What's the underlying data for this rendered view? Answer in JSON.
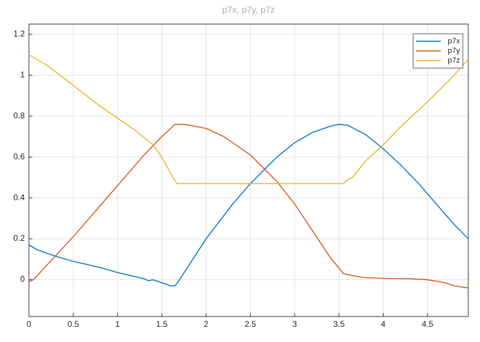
{
  "chart_data": {
    "type": "line",
    "title": "p7x, p7y, p7z",
    "xlim": [
      0,
      4.96
    ],
    "ylim": [
      -0.18,
      1.25
    ],
    "xticks": [
      0,
      0.5,
      1,
      1.5,
      2,
      2.5,
      3,
      3.5,
      4,
      4.5
    ],
    "yticks": [
      0,
      0.2,
      0.4,
      0.6,
      0.8,
      1,
      1.2
    ],
    "grid": true,
    "legend": "northeast",
    "series": [
      {
        "name": "p7x",
        "color": "#0072bd",
        "x": [
          0,
          0.1,
          0.3,
          0.5,
          0.8,
          1.0,
          1.3,
          1.35,
          1.4,
          1.5,
          1.6,
          1.65,
          1.7,
          2.0,
          2.3,
          2.5,
          2.8,
          3.0,
          3.2,
          3.4,
          3.5,
          3.6,
          3.8,
          4.0,
          4.2,
          4.4,
          4.6,
          4.8,
          4.96
        ],
        "values": [
          0.17,
          0.145,
          0.115,
          0.09,
          0.06,
          0.035,
          0.005,
          -0.005,
          0.0,
          -0.015,
          -0.03,
          -0.03,
          0.0,
          0.2,
          0.37,
          0.47,
          0.6,
          0.67,
          0.72,
          0.75,
          0.76,
          0.755,
          0.71,
          0.64,
          0.56,
          0.47,
          0.37,
          0.27,
          0.2
        ]
      },
      {
        "name": "p7y",
        "color": "#d95319",
        "x": [
          0,
          0.05,
          0.2,
          0.5,
          0.8,
          1.0,
          1.3,
          1.5,
          1.65,
          1.75,
          2.0,
          2.2,
          2.5,
          2.8,
          3.0,
          3.2,
          3.4,
          3.55,
          3.65,
          3.8,
          4.0,
          4.3,
          4.5,
          4.7,
          4.8,
          4.96
        ],
        "values": [
          -0.01,
          0.0,
          0.07,
          0.21,
          0.36,
          0.46,
          0.61,
          0.7,
          0.76,
          0.76,
          0.74,
          0.7,
          0.61,
          0.48,
          0.37,
          0.24,
          0.11,
          0.03,
          0.02,
          0.01,
          0.007,
          0.005,
          0.0,
          -0.015,
          -0.03,
          -0.04
        ]
      },
      {
        "name": "p7z",
        "color": "#edb120",
        "x": [
          0,
          0.2,
          0.5,
          0.8,
          1.0,
          1.2,
          1.4,
          1.5,
          1.6,
          1.67,
          2.0,
          3.0,
          3.55,
          3.6,
          3.65,
          3.8,
          4.0,
          4.2,
          4.5,
          4.8,
          4.96
        ],
        "values": [
          1.1,
          1.05,
          0.95,
          0.85,
          0.79,
          0.73,
          0.66,
          0.6,
          0.52,
          0.47,
          0.47,
          0.47,
          0.47,
          0.49,
          0.5,
          0.58,
          0.66,
          0.75,
          0.87,
          1.0,
          1.08
        ]
      }
    ]
  }
}
